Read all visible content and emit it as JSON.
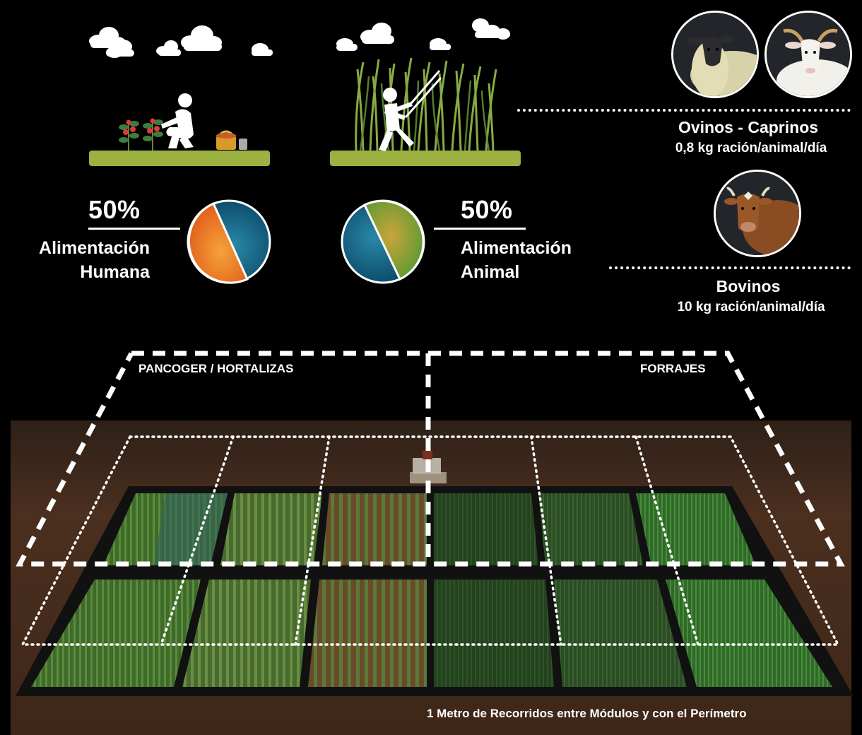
{
  "human": {
    "percent": "50%",
    "label_line1": "Alimentación",
    "label_line2": "Humana",
    "share": 0.5
  },
  "animal": {
    "percent": "50%",
    "label_line1": "Alimentación",
    "label_line2": "Animal",
    "share": 0.5
  },
  "small_ruminants": {
    "name": "Ovinos - Caprinos",
    "ration": "0,8 kg ración/animal/día"
  },
  "cattle": {
    "name": "Bovinos",
    "ration": "10 kg ración/animal/día"
  },
  "field": {
    "left_zone": "PANCOGER / HORTALIZAS",
    "right_zone": "FORRAJES",
    "caption": "1 Metro de Recorridos entre Módulos y con el Perímetro"
  },
  "colors": {
    "background": "#000000",
    "grass_bar": "#9cb13f",
    "orange": "#e8761c",
    "blue": "#0f5a80",
    "green": "#7ea83a",
    "soil": "#4a3021"
  },
  "icons": [
    "cloud-icon",
    "farmer-harvesting-icon",
    "farmer-cutting-forage-icon",
    "basket-icon",
    "sheep-icon",
    "goat-icon",
    "cow-icon"
  ]
}
